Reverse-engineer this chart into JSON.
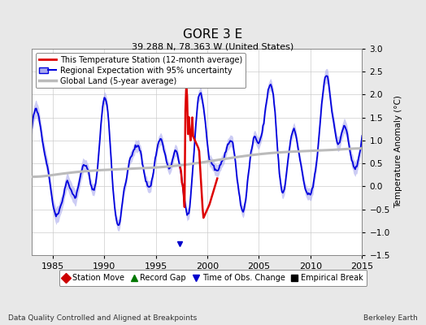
{
  "title": "GORE 3 E",
  "subtitle": "39.288 N, 78.363 W (United States)",
  "ylabel": "Temperature Anomaly (°C)",
  "xlabel_left": "Data Quality Controlled and Aligned at Breakpoints",
  "xlabel_right": "Berkeley Earth",
  "ylim": [
    -1.5,
    3.0
  ],
  "xlim": [
    1983.0,
    2015.0
  ],
  "yticks": [
    -1.5,
    -1.0,
    -0.5,
    0.0,
    0.5,
    1.0,
    1.5,
    2.0,
    2.5,
    3.0
  ],
  "xticks": [
    1985,
    1990,
    1995,
    2000,
    2005,
    2010,
    2015
  ],
  "bg_color": "#e8e8e8",
  "plot_bg_color": "#ffffff",
  "regional_color": "#0000dd",
  "regional_fill_color": "#aaaaee",
  "station_color": "#dd0000",
  "global_color": "#bbbbbb",
  "legend_items": [
    {
      "label": "This Temperature Station (12-month average)",
      "color": "#dd0000",
      "lw": 2
    },
    {
      "label": "Regional Expectation with 95% uncertainty",
      "color": "#0000dd",
      "lw": 1.5
    },
    {
      "label": "Global Land (5-year average)",
      "color": "#bbbbbb",
      "lw": 2
    }
  ],
  "marker_legend": [
    {
      "label": "Station Move",
      "marker": "D",
      "color": "#cc0000"
    },
    {
      "label": "Record Gap",
      "marker": "^",
      "color": "#007700"
    },
    {
      "label": "Time of Obs. Change",
      "marker": "v",
      "color": "#0000cc"
    },
    {
      "label": "Empirical Break",
      "marker": "s",
      "color": "#000000"
    }
  ]
}
